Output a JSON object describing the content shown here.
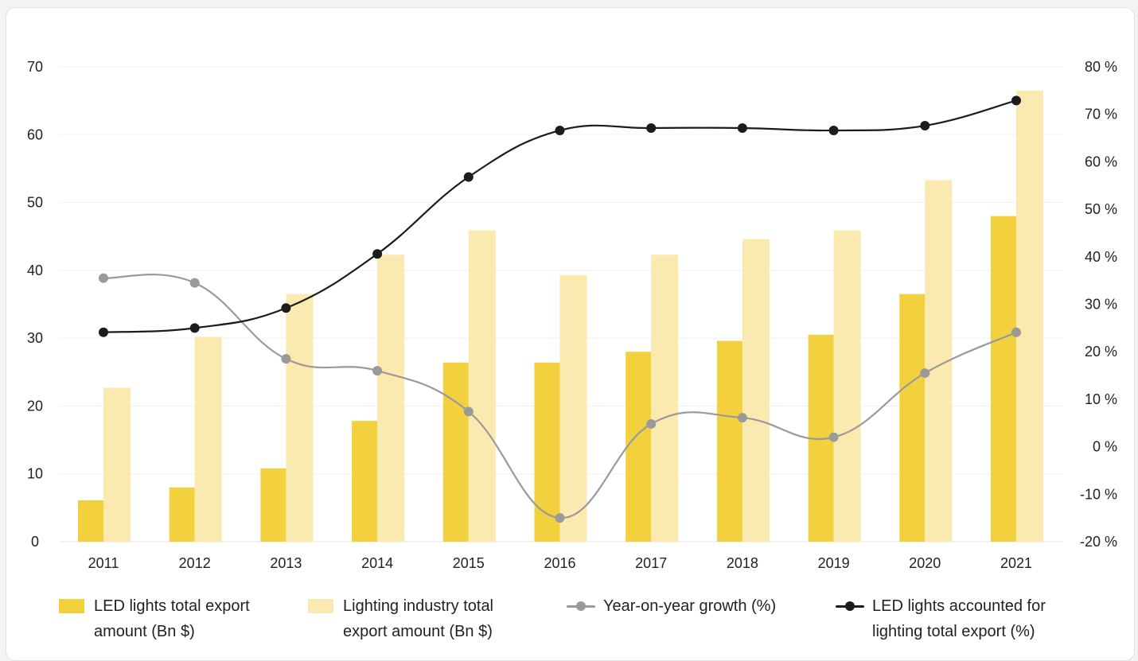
{
  "colors": {
    "led_bar": "#f3d03e",
    "industry_bar": "#fbeab0",
    "growth_line": "#9a9a9a",
    "share_line": "#1c1c1c",
    "grid": "#f1f1f1"
  },
  "legend": {
    "led": "LED lights total export amount (Bn $)",
    "industry": "Lighting industry total export amount (Bn $)",
    "growth": "Year-on-year growth (%)",
    "share": "LED lights accounted for lighting total export (%)"
  },
  "chart_data": {
    "type": "bar",
    "title": "",
    "categories": [
      "2011",
      "2012",
      "2013",
      "2014",
      "2015",
      "2016",
      "2017",
      "2018",
      "2019",
      "2020",
      "2021"
    ],
    "y_left": {
      "lim": [
        0,
        70
      ],
      "ticks": [
        0,
        10,
        20,
        30,
        40,
        50,
        60,
        70
      ],
      "tick_labels": [
        "0",
        "10",
        "20",
        "30",
        "40",
        "50",
        "60",
        "70"
      ]
    },
    "y_right": {
      "lim": [
        -20,
        80
      ],
      "ticks": [
        -20,
        -10,
        0,
        10,
        20,
        30,
        40,
        50,
        60,
        70,
        80
      ],
      "tick_labels": [
        "-20 %",
        "-10 %",
        "0 %",
        "10 %",
        "20 %",
        "30 %",
        "40 %",
        "50 %",
        "60 %",
        "70 %",
        "80 %"
      ]
    },
    "grid": true,
    "legend_position": "bottom",
    "series": [
      {
        "name": "LED lights total export amount (Bn $)",
        "type": "bar",
        "axis": "left",
        "values": [
          6.1,
          8.0,
          10.8,
          17.8,
          26.4,
          26.4,
          28.0,
          29.6,
          30.5,
          36.5,
          48.0
        ]
      },
      {
        "name": "Lighting industry total export amount (Bn $)",
        "type": "bar",
        "axis": "left",
        "values": [
          22.7,
          30.2,
          36.5,
          42.3,
          45.9,
          39.3,
          42.3,
          44.6,
          45.9,
          53.3,
          66.5
        ]
      },
      {
        "name": "Year-on-year growth (%)",
        "type": "line",
        "axis": "right",
        "values": [
          35.5,
          34.5,
          18.5,
          16.0,
          7.4,
          -15.0,
          4.8,
          6.1,
          2.0,
          15.5,
          24.1
        ]
      },
      {
        "name": "LED lights accounted for lighting total export (%)",
        "type": "line",
        "axis": "right",
        "values": [
          24.1,
          25.0,
          29.2,
          40.6,
          56.8,
          66.6,
          67.1,
          67.1,
          66.6,
          67.6,
          72.9
        ]
      }
    ]
  }
}
